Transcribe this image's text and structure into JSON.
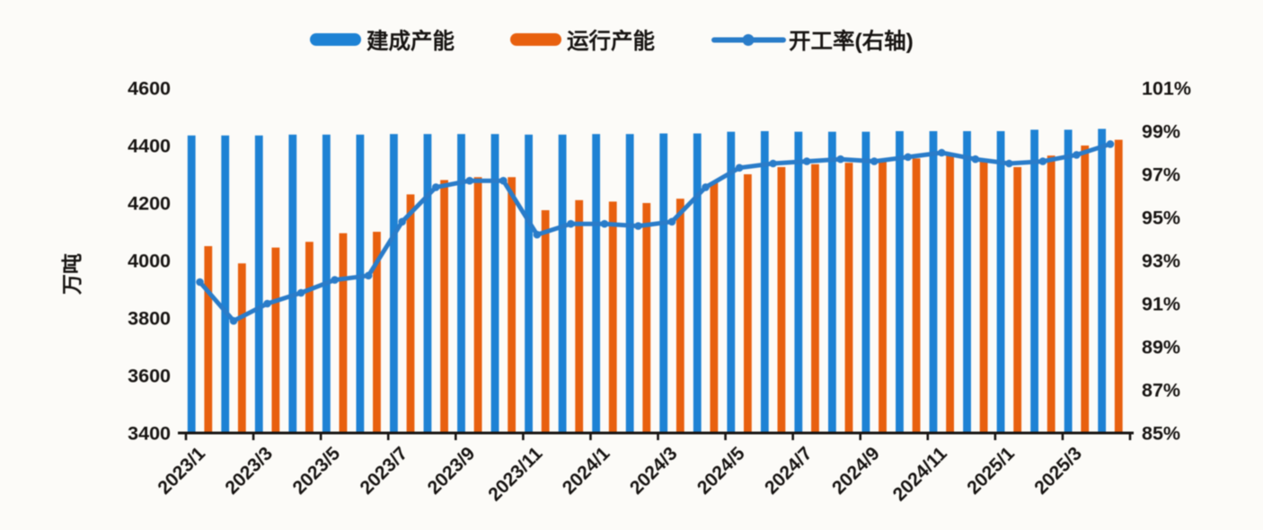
{
  "chart_data": {
    "type": "combo",
    "title": "",
    "legend_position": "top",
    "grid": false,
    "categories": [
      "2023/1",
      "2023/2",
      "2023/3",
      "2023/4",
      "2023/5",
      "2023/6",
      "2023/7",
      "2023/8",
      "2023/9",
      "2023/10",
      "2023/11",
      "2023/12",
      "2024/1",
      "2024/2",
      "2024/3",
      "2024/4",
      "2024/5",
      "2024/6",
      "2024/7",
      "2024/8",
      "2024/9",
      "2024/10",
      "2024/11",
      "2024/12",
      "2025/1",
      "2025/2",
      "2025/3",
      "2025/4"
    ],
    "x_tick_labels": [
      "2023/1",
      "2023/3",
      "2023/5",
      "2023/7",
      "2023/9",
      "2023/11",
      "2024/1",
      "2024/3",
      "2024/5",
      "2024/7",
      "2024/9",
      "2024/11",
      "2025/1",
      "2025/3"
    ],
    "left_axis": {
      "title": "万吨",
      "min": 3400,
      "max": 4600,
      "step": 200,
      "tick_labels": [
        "4600",
        "4400",
        "4200",
        "4000",
        "3800",
        "3600",
        "3400"
      ]
    },
    "right_axis": {
      "min": 85,
      "max": 101,
      "step": 2,
      "tick_labels": [
        "101%",
        "99%",
        "97%",
        "95%",
        "93%",
        "91%",
        "89%",
        "87%",
        "85%"
      ]
    },
    "series": [
      {
        "name": "建成产能",
        "type": "bar",
        "axis": "left",
        "color": "#1e82d4",
        "values": [
          4435,
          4435,
          4435,
          4438,
          4438,
          4438,
          4440,
          4440,
          4440,
          4440,
          4438,
          4438,
          4440,
          4440,
          4442,
          4442,
          4448,
          4450,
          4448,
          4448,
          4448,
          4450,
          4450,
          4450,
          4450,
          4455,
          4455,
          4458
        ]
      },
      {
        "name": "运行产能",
        "type": "bar",
        "axis": "left",
        "color": "#e8600f",
        "values": [
          4050,
          3990,
          4045,
          4065,
          4095,
          4100,
          4230,
          4280,
          4290,
          4290,
          4175,
          4210,
          4205,
          4200,
          4215,
          4270,
          4300,
          4325,
          4335,
          4340,
          4345,
          4355,
          4365,
          4345,
          4325,
          4365,
          4400,
          4420
        ]
      },
      {
        "name": "开工率(右轴)",
        "type": "line",
        "axis": "right",
        "color": "#2a7cc9",
        "values": [
          92.0,
          90.2,
          91.0,
          91.5,
          92.1,
          92.3,
          94.8,
          96.4,
          96.7,
          96.7,
          94.2,
          94.7,
          94.7,
          94.6,
          94.8,
          96.4,
          97.3,
          97.5,
          97.6,
          97.7,
          97.6,
          97.8,
          98.0,
          97.7,
          97.5,
          97.6,
          97.9,
          98.4
        ]
      }
    ]
  },
  "legend": {
    "items": [
      {
        "label": "建成产能",
        "swatch": "bar",
        "color": "#1e82d4"
      },
      {
        "label": "运行产能",
        "swatch": "bar",
        "color": "#e8600f"
      },
      {
        "label": "开工率(右轴)",
        "swatch": "line-marker",
        "color": "#2a7cc9"
      }
    ]
  },
  "colors": {
    "built_bar": "#1e82d4",
    "operating_bar": "#e8600f",
    "rate_line": "#2a7cc9",
    "axis_text": "#171412",
    "background": "#fcfbf8"
  }
}
